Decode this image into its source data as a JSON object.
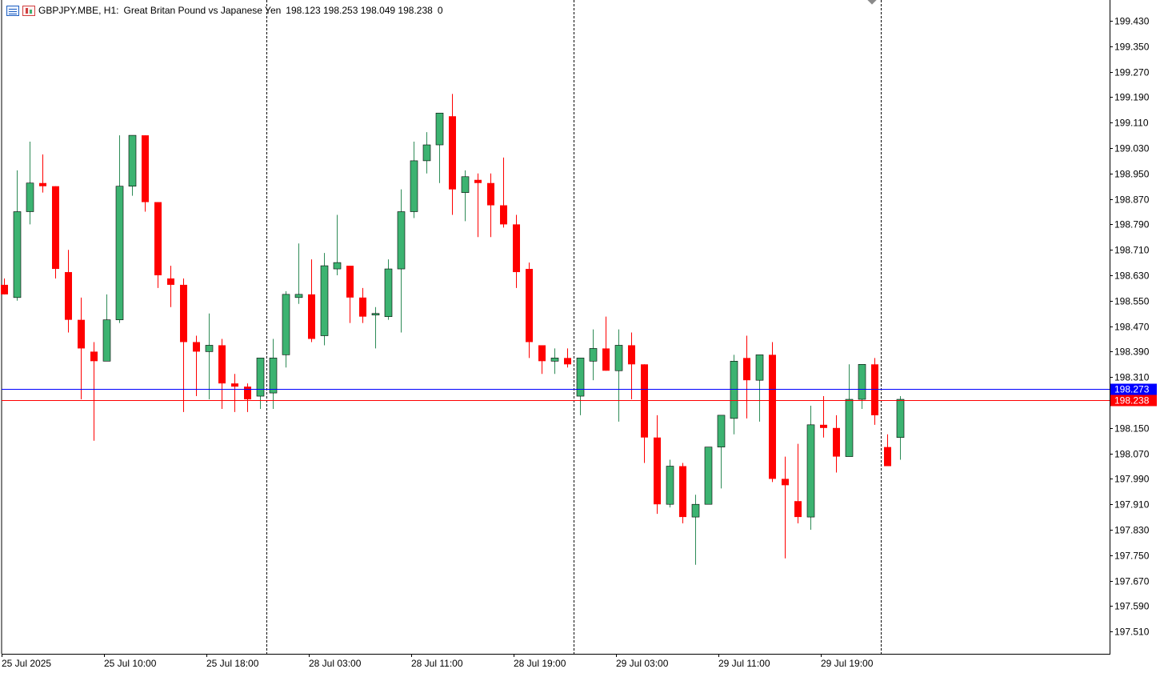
{
  "header": {
    "symbol": "GBPJPY.MBE, H1:",
    "description": "Great Britan Pound vs Japanese Yen",
    "ohlc": "198.123 198.253 198.049 198.238",
    "volume": "0",
    "icons": [
      "menu-icon",
      "chart-icon"
    ]
  },
  "colors": {
    "bull": "#3cb371",
    "bear": "#ff0000",
    "bid_line": "#ff0000",
    "ask_line": "#0000ff",
    "ask_badge": "#0000ff",
    "bid_badge": "#ff0000",
    "grid_separator": "#000000"
  },
  "chart_data": {
    "type": "candlestick",
    "symbol": "GBPJPY.MBE",
    "timeframe": "H1",
    "ylim": [
      197.43,
      199.488
    ],
    "y_ticks": [
      "199.430",
      "199.350",
      "199.270",
      "199.190",
      "199.110",
      "199.030",
      "198.950",
      "198.870",
      "198.790",
      "198.710",
      "198.630",
      "198.550",
      "198.470",
      "198.390",
      "198.310",
      "198.230",
      "198.150",
      "198.070",
      "197.990",
      "197.910",
      "197.830",
      "197.750",
      "197.670",
      "197.590",
      "197.510"
    ],
    "x_labels": [
      {
        "bar": 0,
        "text": "25 Jul 2025"
      },
      {
        "bar": 8,
        "text": "25 Jul 10:00"
      },
      {
        "bar": 16,
        "text": "25 Jul 18:00"
      },
      {
        "bar": 24,
        "text": "28 Jul 03:00"
      },
      {
        "bar": 32,
        "text": "28 Jul 11:00"
      },
      {
        "bar": 40,
        "text": "28 Jul 19:00"
      },
      {
        "bar": 48,
        "text": "29 Jul 03:00"
      },
      {
        "bar": 56,
        "text": "29 Jul 11:00"
      },
      {
        "bar": 64,
        "text": "29 Jul 19:00"
      }
    ],
    "day_separators_after_bar": [
      20.5,
      44.5,
      68.5
    ],
    "candles": [
      {
        "o": 198.6,
        "h": 198.62,
        "l": 198.57,
        "c": 198.57
      },
      {
        "o": 198.56,
        "h": 198.96,
        "l": 198.55,
        "c": 198.83
      },
      {
        "o": 198.83,
        "h": 199.05,
        "l": 198.79,
        "c": 198.92
      },
      {
        "o": 198.92,
        "h": 199.01,
        "l": 198.89,
        "c": 198.91
      },
      {
        "o": 198.91,
        "h": 198.91,
        "l": 198.62,
        "c": 198.65
      },
      {
        "o": 198.64,
        "h": 198.71,
        "l": 198.45,
        "c": 198.49
      },
      {
        "o": 198.49,
        "h": 198.56,
        "l": 198.24,
        "c": 198.4
      },
      {
        "o": 198.39,
        "h": 198.42,
        "l": 198.11,
        "c": 198.36
      },
      {
        "o": 198.36,
        "h": 198.57,
        "l": 198.36,
        "c": 198.49
      },
      {
        "o": 198.49,
        "h": 199.07,
        "l": 198.48,
        "c": 198.91
      },
      {
        "o": 198.91,
        "h": 199.07,
        "l": 198.88,
        "c": 199.07
      },
      {
        "o": 199.07,
        "h": 199.07,
        "l": 198.83,
        "c": 198.86
      },
      {
        "o": 198.86,
        "h": 198.86,
        "l": 198.59,
        "c": 198.63
      },
      {
        "o": 198.62,
        "h": 198.66,
        "l": 198.53,
        "c": 198.6
      },
      {
        "o": 198.6,
        "h": 198.62,
        "l": 198.2,
        "c": 198.42
      },
      {
        "o": 198.42,
        "h": 198.44,
        "l": 198.25,
        "c": 198.39
      },
      {
        "o": 198.39,
        "h": 198.51,
        "l": 198.24,
        "c": 198.41
      },
      {
        "o": 198.41,
        "h": 198.43,
        "l": 198.21,
        "c": 198.29
      },
      {
        "o": 198.29,
        "h": 198.32,
        "l": 198.2,
        "c": 198.28
      },
      {
        "o": 198.28,
        "h": 198.29,
        "l": 198.2,
        "c": 198.24
      },
      {
        "o": 198.25,
        "h": 198.37,
        "l": 198.21,
        "c": 198.37
      },
      {
        "o": 198.26,
        "h": 198.43,
        "l": 198.21,
        "c": 198.37
      },
      {
        "o": 198.38,
        "h": 198.58,
        "l": 198.34,
        "c": 198.57
      },
      {
        "o": 198.56,
        "h": 198.73,
        "l": 198.54,
        "c": 198.57
      },
      {
        "o": 198.57,
        "h": 198.68,
        "l": 198.42,
        "c": 198.43
      },
      {
        "o": 198.44,
        "h": 198.7,
        "l": 198.41,
        "c": 198.66
      },
      {
        "o": 198.65,
        "h": 198.82,
        "l": 198.63,
        "c": 198.67
      },
      {
        "o": 198.66,
        "h": 198.66,
        "l": 198.48,
        "c": 198.56
      },
      {
        "o": 198.56,
        "h": 198.59,
        "l": 198.48,
        "c": 198.5
      },
      {
        "o": 198.51,
        "h": 198.53,
        "l": 198.4,
        "c": 198.51
      },
      {
        "o": 198.5,
        "h": 198.68,
        "l": 198.49,
        "c": 198.65
      },
      {
        "o": 198.65,
        "h": 198.9,
        "l": 198.45,
        "c": 198.83
      },
      {
        "o": 198.83,
        "h": 199.05,
        "l": 198.81,
        "c": 198.99
      },
      {
        "o": 198.99,
        "h": 199.08,
        "l": 198.95,
        "c": 199.04
      },
      {
        "o": 199.04,
        "h": 199.14,
        "l": 198.92,
        "c": 199.14
      },
      {
        "o": 199.13,
        "h": 199.2,
        "l": 198.82,
        "c": 198.9
      },
      {
        "o": 198.89,
        "h": 198.96,
        "l": 198.8,
        "c": 198.94
      },
      {
        "o": 198.93,
        "h": 198.95,
        "l": 198.75,
        "c": 198.92
      },
      {
        "o": 198.92,
        "h": 198.95,
        "l": 198.75,
        "c": 198.85
      },
      {
        "o": 198.85,
        "h": 199.0,
        "l": 198.78,
        "c": 198.79
      },
      {
        "o": 198.79,
        "h": 198.82,
        "l": 198.59,
        "c": 198.64
      },
      {
        "o": 198.65,
        "h": 198.67,
        "l": 198.37,
        "c": 198.42
      },
      {
        "o": 198.41,
        "h": 198.41,
        "l": 198.32,
        "c": 198.36
      },
      {
        "o": 198.36,
        "h": 198.4,
        "l": 198.32,
        "c": 198.37
      },
      {
        "o": 198.37,
        "h": 198.4,
        "l": 198.34,
        "c": 198.35
      },
      {
        "o": 198.25,
        "h": 198.37,
        "l": 198.19,
        "c": 198.37
      },
      {
        "o": 198.36,
        "h": 198.46,
        "l": 198.3,
        "c": 198.4
      },
      {
        "o": 198.4,
        "h": 198.5,
        "l": 198.33,
        "c": 198.33
      },
      {
        "o": 198.33,
        "h": 198.46,
        "l": 198.17,
        "c": 198.41
      },
      {
        "o": 198.41,
        "h": 198.45,
        "l": 198.24,
        "c": 198.35
      },
      {
        "o": 198.35,
        "h": 198.35,
        "l": 198.04,
        "c": 198.12
      },
      {
        "o": 198.12,
        "h": 198.19,
        "l": 197.88,
        "c": 197.91
      },
      {
        "o": 197.91,
        "h": 198.05,
        "l": 197.9,
        "c": 198.03
      },
      {
        "o": 198.03,
        "h": 198.04,
        "l": 197.85,
        "c": 197.87
      },
      {
        "o": 197.87,
        "h": 197.94,
        "l": 197.72,
        "c": 197.91
      },
      {
        "o": 197.91,
        "h": 198.09,
        "l": 197.91,
        "c": 198.09
      },
      {
        "o": 198.09,
        "h": 198.18,
        "l": 197.96,
        "c": 198.19
      },
      {
        "o": 198.18,
        "h": 198.38,
        "l": 198.13,
        "c": 198.36
      },
      {
        "o": 198.37,
        "h": 198.44,
        "l": 198.18,
        "c": 198.3
      },
      {
        "o": 198.3,
        "h": 198.38,
        "l": 198.17,
        "c": 198.38
      },
      {
        "o": 198.38,
        "h": 198.42,
        "l": 197.98,
        "c": 197.99
      },
      {
        "o": 197.99,
        "h": 198.06,
        "l": 197.74,
        "c": 197.97
      },
      {
        "o": 197.92,
        "h": 198.1,
        "l": 197.85,
        "c": 197.87
      },
      {
        "o": 197.87,
        "h": 198.22,
        "l": 197.83,
        "c": 198.16
      },
      {
        "o": 198.16,
        "h": 198.25,
        "l": 198.12,
        "c": 198.15
      },
      {
        "o": 198.15,
        "h": 198.19,
        "l": 198.01,
        "c": 198.06
      },
      {
        "o": 198.06,
        "h": 198.35,
        "l": 198.06,
        "c": 198.24
      },
      {
        "o": 198.24,
        "h": 198.35,
        "l": 198.21,
        "c": 198.35
      },
      {
        "o": 198.35,
        "h": 198.37,
        "l": 198.16,
        "c": 198.19
      },
      {
        "o": 198.09,
        "h": 198.13,
        "l": 198.03,
        "c": 198.03
      },
      {
        "o": 198.12,
        "h": 198.25,
        "l": 198.05,
        "c": 198.24
      }
    ],
    "ask_price": "198.273",
    "bid_price": "198.238",
    "ask_value": 198.273,
    "bid_value": 198.238
  }
}
